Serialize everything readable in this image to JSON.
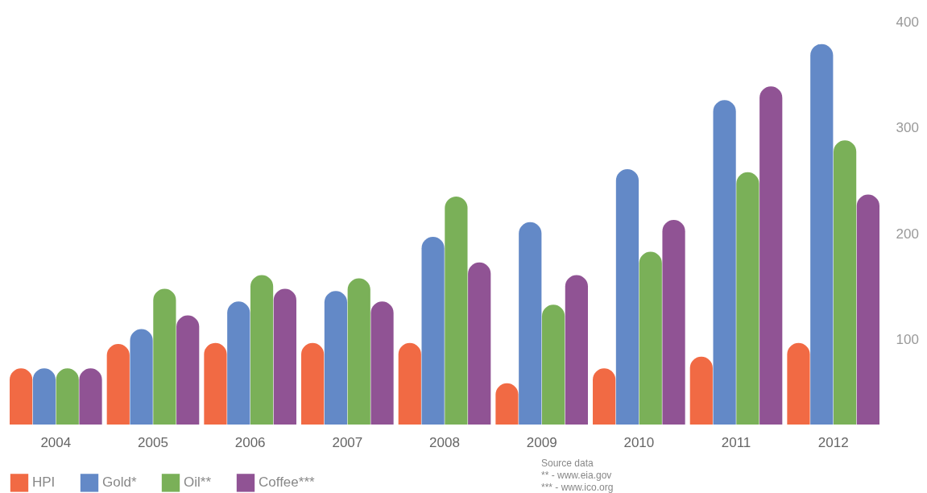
{
  "chart_data": {
    "type": "bar",
    "categories": [
      "2004",
      "2005",
      "2006",
      "2007",
      "2008",
      "2009",
      "2010",
      "2011",
      "2012"
    ],
    "series": [
      {
        "name": "HPI",
        "color": "#f0623a",
        "values": [
          73,
          96,
          97,
          97,
          97,
          59,
          73,
          84,
          97
        ]
      },
      {
        "name": "Gold*",
        "color": "#5b83c4",
        "values": [
          73,
          110,
          136,
          146,
          197,
          211,
          261,
          326,
          379
        ]
      },
      {
        "name": "Oil**",
        "color": "#73ac4f",
        "values": [
          73,
          148,
          161,
          158,
          235,
          133,
          183,
          258,
          288
        ]
      },
      {
        "name": "Coffee***",
        "color": "#8a4a8e",
        "values": [
          73,
          123,
          148,
          136,
          173,
          161,
          213,
          339,
          237
        ]
      }
    ],
    "ylim": [
      20,
      400
    ],
    "yticks": [
      100,
      200,
      300,
      400
    ],
    "grid": false,
    "legend": "bottom",
    "annotations": [
      "Source data",
      "** - www.eia.gov",
      "*** - www.ico.org"
    ]
  }
}
